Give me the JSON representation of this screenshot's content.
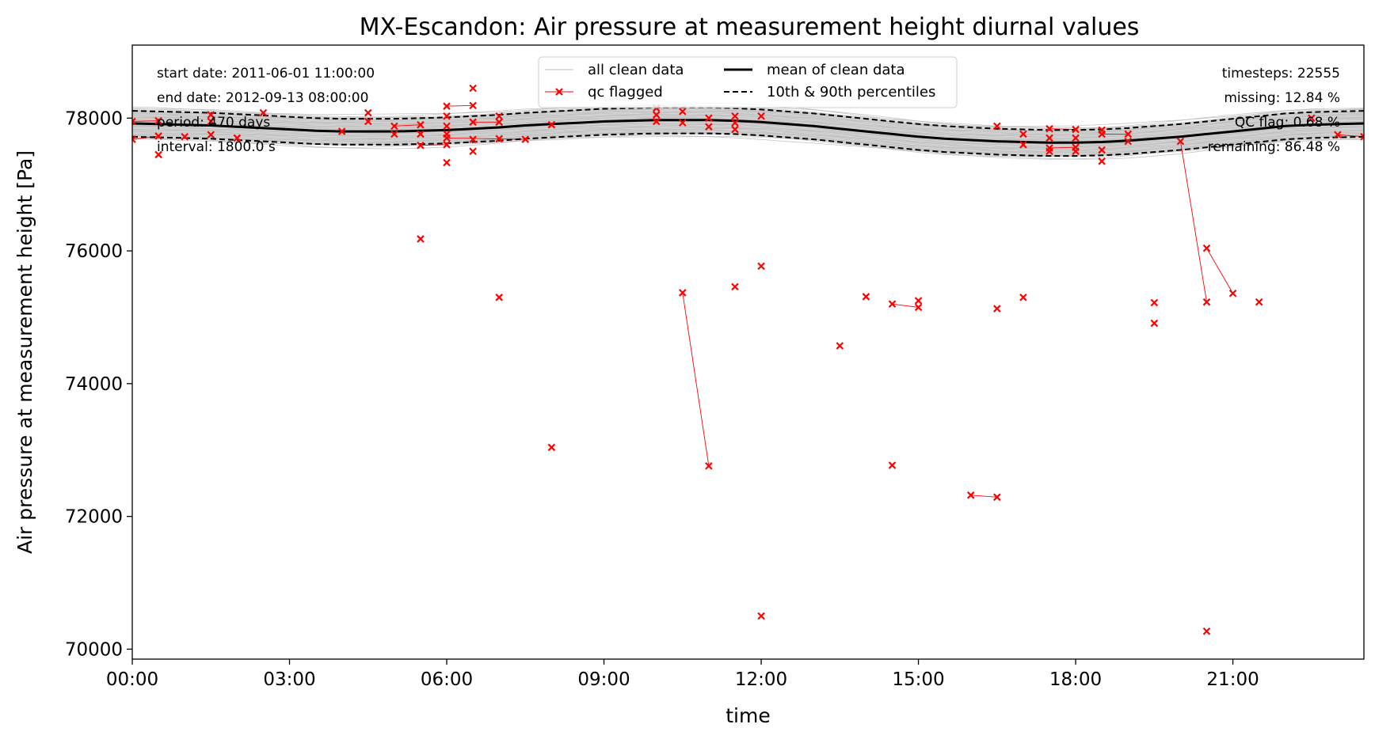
{
  "chart_data": {
    "type": "line",
    "title": "MX-Escandon: Air pressure at measurement height diurnal values",
    "xlabel": "time",
    "ylabel": "Air pressure at measurement height [Pa]",
    "xlim_hours": [
      0,
      23.5
    ],
    "ylim": [
      69850,
      79100
    ],
    "x_ticks": [
      "00:00",
      "03:00",
      "06:00",
      "09:00",
      "12:00",
      "15:00",
      "18:00",
      "21:00"
    ],
    "y_ticks": [
      70000,
      72000,
      74000,
      76000,
      78000
    ],
    "grid": false,
    "legend_position": "top-center",
    "legend": {
      "all_clean": "all clean data",
      "qc": "qc flagged",
      "mean": "mean of clean data",
      "pct": "10th & 90th percentiles"
    },
    "info_left": [
      "start date: 2011-06-01 11:00:00",
      "end date: 2012-09-13 08:00:00",
      "period: 470 days",
      "interval: 1800.0 s"
    ],
    "info_right": [
      "timesteps: 22555",
      "missing: 12.84 %",
      "QC flag: 0.68 %",
      "remaining: 86.48 %"
    ],
    "colors": {
      "clean": "#bbbbbb",
      "band": "#c0c0c0",
      "mean": "#000000",
      "qc": "#ff0000"
    },
    "x_hours": [
      0,
      0.5,
      1,
      1.5,
      2,
      2.5,
      3,
      3.5,
      4,
      4.5,
      5,
      5.5,
      6,
      6.5,
      7,
      7.5,
      8,
      8.5,
      9,
      9.5,
      10,
      10.5,
      11,
      11.5,
      12,
      12.5,
      13,
      13.5,
      14,
      14.5,
      15,
      15.5,
      16,
      16.5,
      17,
      17.5,
      18,
      18.5,
      19,
      19.5,
      20,
      20.5,
      21,
      21.5,
      22,
      22.5,
      23,
      23.5
    ],
    "mean": [
      77920,
      77910,
      77900,
      77890,
      77870,
      77850,
      77830,
      77810,
      77800,
      77800,
      77800,
      77810,
      77820,
      77840,
      77860,
      77890,
      77910,
      77930,
      77950,
      77960,
      77970,
      77970,
      77970,
      77960,
      77940,
      77910,
      77880,
      77840,
      77800,
      77760,
      77720,
      77690,
      77670,
      77650,
      77640,
      77630,
      77630,
      77640,
      77660,
      77690,
      77720,
      77760,
      77800,
      77840,
      77880,
      77900,
      77910,
      77920
    ],
    "p10": [
      77720,
      77710,
      77700,
      77690,
      77670,
      77650,
      77630,
      77610,
      77600,
      77600,
      77600,
      77610,
      77620,
      77640,
      77660,
      77690,
      77710,
      77730,
      77750,
      77760,
      77770,
      77770,
      77770,
      77760,
      77740,
      77710,
      77680,
      77640,
      77600,
      77560,
      77520,
      77490,
      77470,
      77450,
      77440,
      77430,
      77430,
      77440,
      77460,
      77490,
      77520,
      77560,
      77600,
      77640,
      77680,
      77700,
      77710,
      77720
    ],
    "p90": [
      78110,
      78100,
      78090,
      78080,
      78060,
      78040,
      78020,
      78000,
      77990,
      77990,
      77990,
      78000,
      78010,
      78030,
      78050,
      78080,
      78100,
      78120,
      78140,
      78150,
      78160,
      78160,
      78160,
      78150,
      78130,
      78100,
      78070,
      78030,
      77990,
      77950,
      77910,
      77880,
      77860,
      77840,
      77830,
      77820,
      77820,
      77830,
      77850,
      77880,
      77910,
      77950,
      77990,
      78030,
      78070,
      78090,
      78100,
      78110
    ],
    "qc_points": [
      {
        "x": 0.0,
        "y": 77950
      },
      {
        "x": 0.0,
        "y": 77680
      },
      {
        "x": 0.5,
        "y": 77960
      },
      {
        "x": 0.5,
        "y": 77730
      },
      {
        "x": 0.5,
        "y": 77450
      },
      {
        "x": 1.0,
        "y": 77720
      },
      {
        "x": 1.5,
        "y": 78050
      },
      {
        "x": 1.5,
        "y": 77950
      },
      {
        "x": 1.5,
        "y": 77750
      },
      {
        "x": 2.0,
        "y": 77700
      },
      {
        "x": 2.5,
        "y": 78080
      },
      {
        "x": 4.0,
        "y": 77800
      },
      {
        "x": 4.5,
        "y": 78080
      },
      {
        "x": 4.5,
        "y": 77950
      },
      {
        "x": 5.0,
        "y": 77880
      },
      {
        "x": 5.0,
        "y": 77760
      },
      {
        "x": 5.5,
        "y": 77900
      },
      {
        "x": 5.5,
        "y": 77760
      },
      {
        "x": 5.5,
        "y": 77590
      },
      {
        "x": 5.5,
        "y": 76180
      },
      {
        "x": 6.0,
        "y": 78180
      },
      {
        "x": 6.0,
        "y": 78030
      },
      {
        "x": 6.0,
        "y": 77880
      },
      {
        "x": 6.0,
        "y": 77760
      },
      {
        "x": 6.0,
        "y": 77700
      },
      {
        "x": 6.0,
        "y": 77600
      },
      {
        "x": 6.0,
        "y": 77330
      },
      {
        "x": 6.5,
        "y": 78450
      },
      {
        "x": 6.5,
        "y": 78190
      },
      {
        "x": 6.5,
        "y": 77940
      },
      {
        "x": 6.5,
        "y": 77680
      },
      {
        "x": 6.5,
        "y": 77500
      },
      {
        "x": 7.0,
        "y": 78030
      },
      {
        "x": 7.0,
        "y": 77940
      },
      {
        "x": 7.0,
        "y": 77690
      },
      {
        "x": 7.0,
        "y": 75300
      },
      {
        "x": 7.5,
        "y": 77680
      },
      {
        "x": 8.0,
        "y": 77900
      },
      {
        "x": 8.0,
        "y": 73040
      },
      {
        "x": 10.0,
        "y": 78150
      },
      {
        "x": 10.0,
        "y": 78050
      },
      {
        "x": 10.0,
        "y": 77950
      },
      {
        "x": 10.5,
        "y": 78100
      },
      {
        "x": 10.5,
        "y": 77930
      },
      {
        "x": 10.5,
        "y": 75370
      },
      {
        "x": 11.0,
        "y": 78000
      },
      {
        "x": 11.0,
        "y": 77870
      },
      {
        "x": 11.0,
        "y": 72760
      },
      {
        "x": 11.5,
        "y": 78030
      },
      {
        "x": 11.5,
        "y": 77930
      },
      {
        "x": 11.5,
        "y": 77830
      },
      {
        "x": 11.5,
        "y": 75460
      },
      {
        "x": 12.0,
        "y": 78030
      },
      {
        "x": 12.0,
        "y": 75770
      },
      {
        "x": 12.0,
        "y": 70500
      },
      {
        "x": 13.5,
        "y": 74570
      },
      {
        "x": 14.0,
        "y": 75310
      },
      {
        "x": 14.5,
        "y": 75200
      },
      {
        "x": 14.5,
        "y": 72770
      },
      {
        "x": 15.0,
        "y": 75250
      },
      {
        "x": 15.0,
        "y": 75150
      },
      {
        "x": 16.0,
        "y": 72320
      },
      {
        "x": 16.5,
        "y": 77880
      },
      {
        "x": 16.5,
        "y": 75130
      },
      {
        "x": 16.5,
        "y": 72290
      },
      {
        "x": 17.0,
        "y": 77760
      },
      {
        "x": 17.0,
        "y": 77600
      },
      {
        "x": 17.0,
        "y": 75300
      },
      {
        "x": 17.5,
        "y": 77840
      },
      {
        "x": 17.5,
        "y": 77700
      },
      {
        "x": 17.5,
        "y": 77550
      },
      {
        "x": 17.5,
        "y": 77500
      },
      {
        "x": 18.0,
        "y": 77830
      },
      {
        "x": 18.0,
        "y": 77700
      },
      {
        "x": 18.0,
        "y": 77560
      },
      {
        "x": 18.0,
        "y": 77500
      },
      {
        "x": 18.5,
        "y": 77820
      },
      {
        "x": 18.5,
        "y": 77760
      },
      {
        "x": 18.5,
        "y": 77520
      },
      {
        "x": 18.5,
        "y": 77350
      },
      {
        "x": 19.0,
        "y": 77760
      },
      {
        "x": 19.0,
        "y": 77650
      },
      {
        "x": 19.5,
        "y": 75220
      },
      {
        "x": 19.5,
        "y": 74910
      },
      {
        "x": 20.0,
        "y": 77650
      },
      {
        "x": 20.5,
        "y": 76040
      },
      {
        "x": 20.5,
        "y": 75230
      },
      {
        "x": 20.5,
        "y": 70270
      },
      {
        "x": 21.0,
        "y": 75360
      },
      {
        "x": 21.5,
        "y": 75230
      },
      {
        "x": 22.5,
        "y": 78000
      },
      {
        "x": 23.0,
        "y": 77750
      },
      {
        "x": 23.5,
        "y": 77720
      }
    ],
    "qc_links": [
      [
        {
          "x": 0.0,
          "y": 77950
        },
        {
          "x": 0.5,
          "y": 77960
        }
      ],
      [
        {
          "x": 0.0,
          "y": 77680
        },
        {
          "x": 0.5,
          "y": 77730
        }
      ],
      [
        {
          "x": 5.0,
          "y": 77880
        },
        {
          "x": 5.5,
          "y": 77900
        }
      ],
      [
        {
          "x": 5.5,
          "y": 77590
        },
        {
          "x": 6.0,
          "y": 77600
        }
      ],
      [
        {
          "x": 6.0,
          "y": 78180
        },
        {
          "x": 6.5,
          "y": 78190
        }
      ],
      [
        {
          "x": 6.0,
          "y": 77700
        },
        {
          "x": 7.5,
          "y": 77680
        }
      ],
      [
        {
          "x": 6.5,
          "y": 77940
        },
        {
          "x": 7.0,
          "y": 77940
        }
      ],
      [
        {
          "x": 10.5,
          "y": 75370
        },
        {
          "x": 11.0,
          "y": 72760
        }
      ],
      [
        {
          "x": 14.5,
          "y": 75200
        },
        {
          "x": 15.0,
          "y": 75150
        }
      ],
      [
        {
          "x": 16.0,
          "y": 72320
        },
        {
          "x": 16.5,
          "y": 72290
        }
      ],
      [
        {
          "x": 17.5,
          "y": 77840
        },
        {
          "x": 18.0,
          "y": 77830
        }
      ],
      [
        {
          "x": 17.5,
          "y": 77550
        },
        {
          "x": 18.0,
          "y": 77560
        }
      ],
      [
        {
          "x": 18.5,
          "y": 77760
        },
        {
          "x": 19.0,
          "y": 77760
        }
      ],
      [
        {
          "x": 20.0,
          "y": 77650
        },
        {
          "x": 20.5,
          "y": 75230
        }
      ],
      [
        {
          "x": 20.5,
          "y": 76040
        },
        {
          "x": 21.0,
          "y": 75360
        }
      ],
      [
        {
          "x": 23.0,
          "y": 77750
        },
        {
          "x": 23.5,
          "y": 77720
        }
      ]
    ]
  }
}
